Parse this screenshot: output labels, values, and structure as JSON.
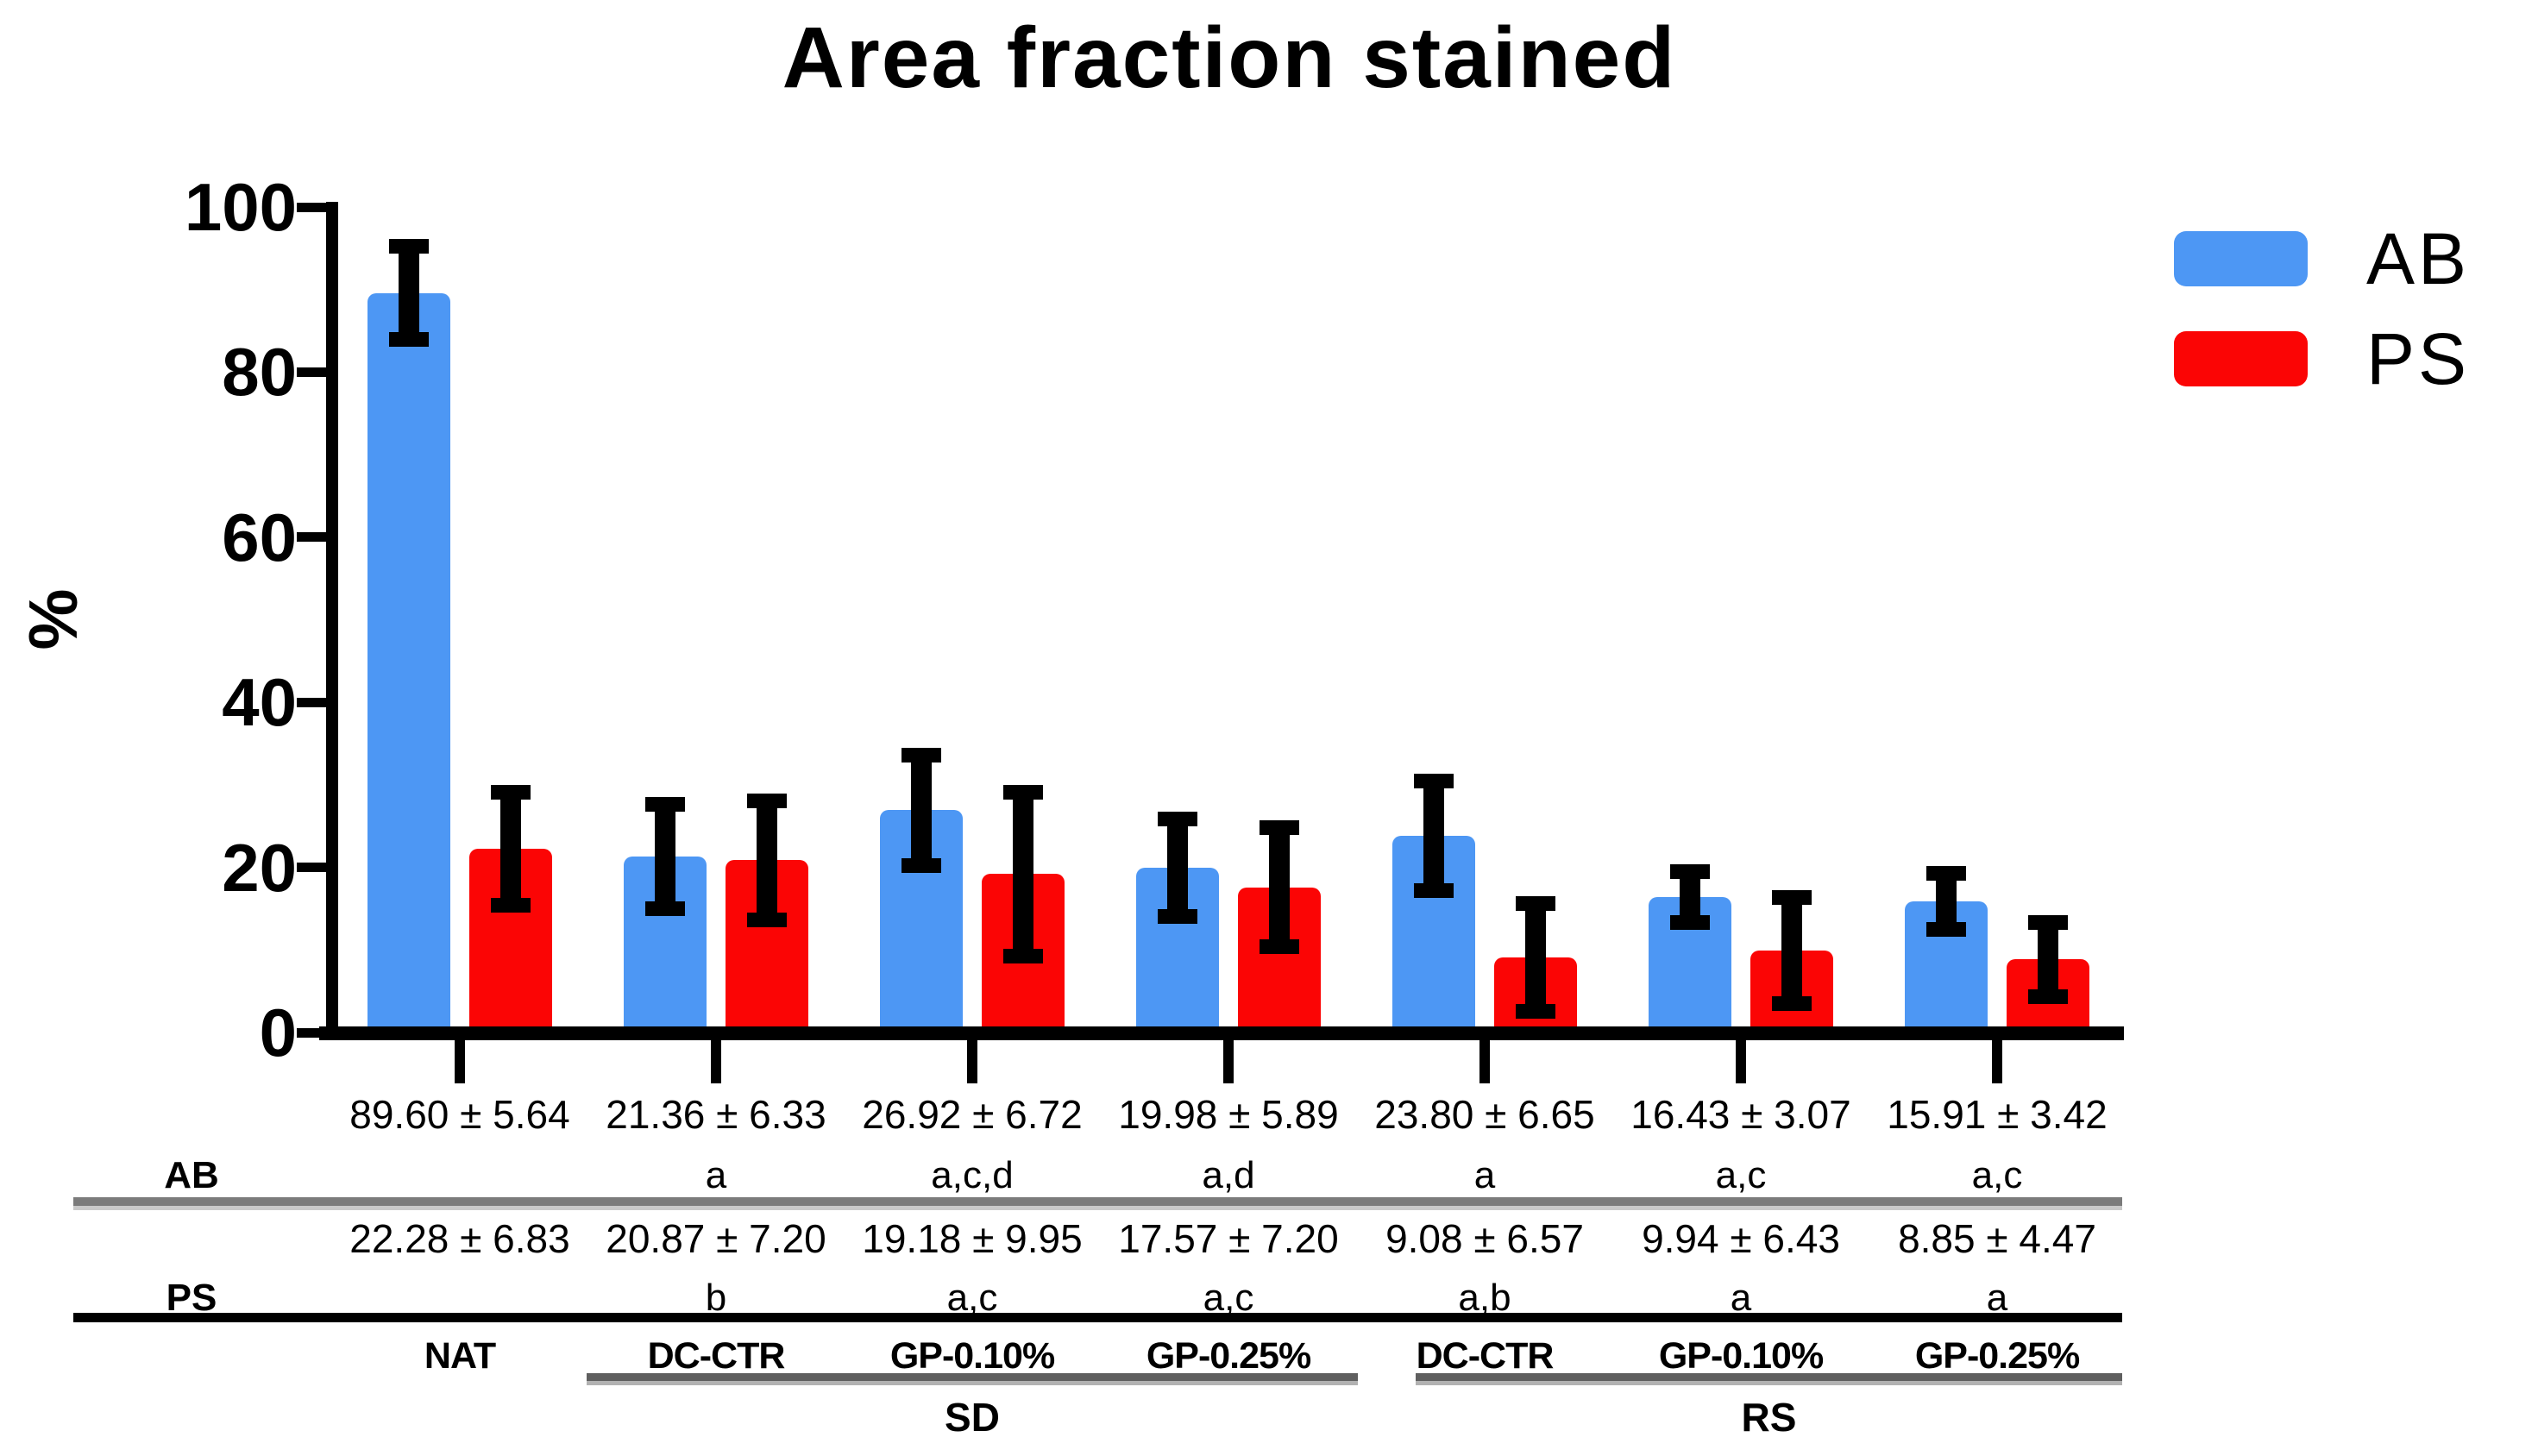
{
  "title": "Area fraction stained",
  "ylabel": "%",
  "legend": [
    {
      "label": "AB",
      "color": "#4D97F4"
    },
    {
      "label": "PS",
      "color": "#FB0505"
    }
  ],
  "chart_data": {
    "type": "bar",
    "title": "Area fraction stained",
    "ylabel": "%",
    "xlabel": "",
    "ylim": [
      0,
      100
    ],
    "yticks": [
      0,
      20,
      40,
      60,
      80,
      100
    ],
    "grid": false,
    "legend_position": "top-right",
    "categories": [
      "NAT",
      "DC-CTR",
      "GP-0.10%",
      "GP-0.25%",
      "DC-CTR",
      "GP-0.10%",
      "GP-0.25%"
    ],
    "sections": [
      {
        "label": "SD",
        "from_group": 1,
        "to_group": 3
      },
      {
        "label": "RS",
        "from_group": 4,
        "to_group": 6
      }
    ],
    "series": [
      {
        "name": "AB",
        "color": "#4D97F4",
        "values": [
          89.6,
          21.36,
          26.92,
          19.98,
          23.8,
          16.43,
          15.91
        ],
        "sd": [
          5.64,
          6.33,
          6.72,
          5.89,
          6.65,
          3.07,
          3.42
        ]
      },
      {
        "name": "PS",
        "color": "#FB0505",
        "values": [
          22.28,
          20.87,
          19.18,
          17.57,
          9.08,
          9.94,
          8.85
        ],
        "sd": [
          6.83,
          7.2,
          9.95,
          7.2,
          6.57,
          6.43,
          4.47
        ]
      }
    ]
  },
  "table": {
    "rows": [
      {
        "header": "AB",
        "values": [
          "89.60 ± 5.64",
          "21.36 ± 6.33",
          "26.92 ± 6.72",
          "19.98 ± 5.89",
          "23.80 ± 6.65",
          "16.43 ± 3.07",
          "15.91 ± 3.42"
        ],
        "letters": [
          "",
          "a",
          "a,c,d",
          "a,d",
          "a",
          "a,c",
          "a,c"
        ]
      },
      {
        "header": "PS",
        "values": [
          "22.28 ± 6.83",
          "20.87 ± 7.20",
          "19.18 ± 9.95",
          "17.57 ± 7.20",
          "9.08 ± 6.57",
          "9.94 ± 6.43",
          "8.85 ± 4.47"
        ],
        "letters": [
          "",
          "b",
          "a,c",
          "a,c",
          "a,b",
          "a",
          "a"
        ]
      }
    ],
    "group_labels": [
      "NAT",
      "DC-CTR",
      "GP-0.10%",
      "GP-0.25%",
      "DC-CTR",
      "GP-0.10%",
      "GP-0.25%"
    ],
    "section_labels": [
      "SD",
      "RS"
    ]
  }
}
